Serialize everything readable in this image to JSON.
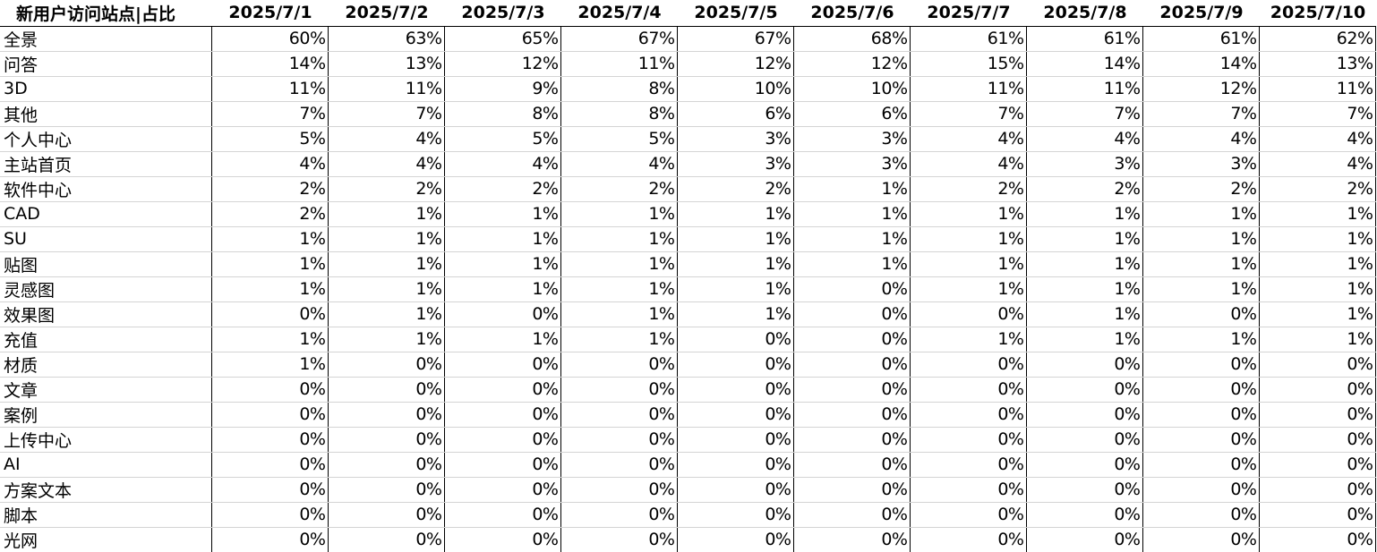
{
  "table": {
    "title": "新用户访问站点|占比",
    "columns": [
      "2025/7/1",
      "2025/7/2",
      "2025/7/3",
      "2025/7/4",
      "2025/7/5",
      "2025/7/6",
      "2025/7/7",
      "2025/7/8",
      "2025/7/9",
      "2025/7/10"
    ],
    "rows": [
      {
        "label": "全景",
        "values": [
          "60%",
          "63%",
          "65%",
          "67%",
          "67%",
          "68%",
          "61%",
          "61%",
          "61%",
          "62%"
        ]
      },
      {
        "label": "问答",
        "values": [
          "14%",
          "13%",
          "12%",
          "11%",
          "12%",
          "12%",
          "15%",
          "14%",
          "14%",
          "13%"
        ]
      },
      {
        "label": "3D",
        "values": [
          "11%",
          "11%",
          "9%",
          "8%",
          "10%",
          "10%",
          "11%",
          "11%",
          "12%",
          "11%"
        ]
      },
      {
        "label": "其他",
        "values": [
          "7%",
          "7%",
          "8%",
          "8%",
          "6%",
          "6%",
          "7%",
          "7%",
          "7%",
          "7%"
        ]
      },
      {
        "label": "个人中心",
        "values": [
          "5%",
          "4%",
          "5%",
          "5%",
          "3%",
          "3%",
          "4%",
          "4%",
          "4%",
          "4%"
        ]
      },
      {
        "label": "主站首页",
        "values": [
          "4%",
          "4%",
          "4%",
          "4%",
          "3%",
          "3%",
          "4%",
          "3%",
          "3%",
          "4%"
        ]
      },
      {
        "label": "软件中心",
        "values": [
          "2%",
          "2%",
          "2%",
          "2%",
          "2%",
          "1%",
          "2%",
          "2%",
          "2%",
          "2%"
        ]
      },
      {
        "label": "CAD",
        "values": [
          "2%",
          "1%",
          "1%",
          "1%",
          "1%",
          "1%",
          "1%",
          "1%",
          "1%",
          "1%"
        ]
      },
      {
        "label": "SU",
        "values": [
          "1%",
          "1%",
          "1%",
          "1%",
          "1%",
          "1%",
          "1%",
          "1%",
          "1%",
          "1%"
        ]
      },
      {
        "label": "贴图",
        "values": [
          "1%",
          "1%",
          "1%",
          "1%",
          "1%",
          "1%",
          "1%",
          "1%",
          "1%",
          "1%"
        ]
      },
      {
        "label": "灵感图",
        "values": [
          "1%",
          "1%",
          "1%",
          "1%",
          "1%",
          "0%",
          "1%",
          "1%",
          "1%",
          "1%"
        ]
      },
      {
        "label": "效果图",
        "values": [
          "0%",
          "1%",
          "0%",
          "1%",
          "1%",
          "0%",
          "0%",
          "1%",
          "0%",
          "1%"
        ]
      },
      {
        "label": "充值",
        "values": [
          "1%",
          "1%",
          "1%",
          "1%",
          "0%",
          "0%",
          "1%",
          "1%",
          "1%",
          "1%"
        ]
      },
      {
        "label": "材质",
        "values": [
          "1%",
          "0%",
          "0%",
          "0%",
          "0%",
          "0%",
          "0%",
          "0%",
          "0%",
          "0%"
        ]
      },
      {
        "label": "文章",
        "values": [
          "0%",
          "0%",
          "0%",
          "0%",
          "0%",
          "0%",
          "0%",
          "0%",
          "0%",
          "0%"
        ]
      },
      {
        "label": "案例",
        "values": [
          "0%",
          "0%",
          "0%",
          "0%",
          "0%",
          "0%",
          "0%",
          "0%",
          "0%",
          "0%"
        ]
      },
      {
        "label": "上传中心",
        "values": [
          "0%",
          "0%",
          "0%",
          "0%",
          "0%",
          "0%",
          "0%",
          "0%",
          "0%",
          "0%"
        ]
      },
      {
        "label": "AI",
        "values": [
          "0%",
          "0%",
          "0%",
          "0%",
          "0%",
          "0%",
          "0%",
          "0%",
          "0%",
          "0%"
        ]
      },
      {
        "label": "方案文本",
        "values": [
          "0%",
          "0%",
          "0%",
          "0%",
          "0%",
          "0%",
          "0%",
          "0%",
          "0%",
          "0%"
        ]
      },
      {
        "label": "脚本",
        "values": [
          "0%",
          "0%",
          "0%",
          "0%",
          "0%",
          "0%",
          "0%",
          "0%",
          "0%",
          "0%"
        ]
      },
      {
        "label": "光网",
        "values": [
          "0%",
          "0%",
          "0%",
          "0%",
          "0%",
          "0%",
          "0%",
          "0%",
          "0%",
          "0%"
        ]
      }
    ]
  }
}
